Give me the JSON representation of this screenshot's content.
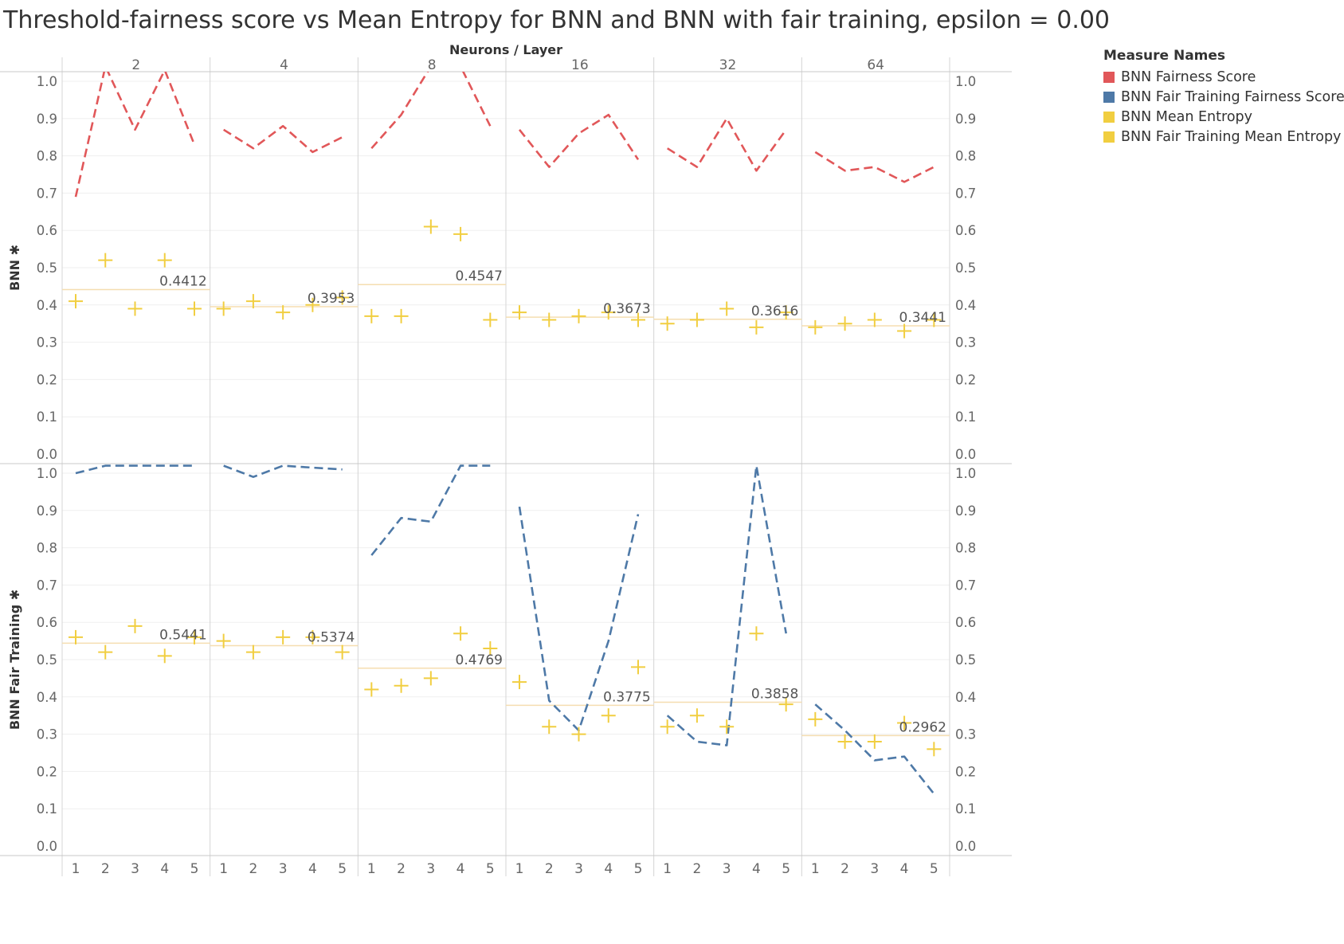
{
  "chart_data": {
    "type": "line",
    "title": "Threshold-fairness score vs Mean Entropy for BNN and BNN with fair training, epsilon = 0.00",
    "column_header": "Neurons / Layer",
    "columns": [
      "2",
      "4",
      "8",
      "16",
      "32",
      "64"
    ],
    "x_ticks": [
      "1",
      "2",
      "3",
      "4",
      "5"
    ],
    "y_ticks": [
      "0.0",
      "0.1",
      "0.2",
      "0.3",
      "0.4",
      "0.5",
      "0.6",
      "0.7",
      "0.8",
      "0.9",
      "1.0"
    ],
    "ylim": [
      0,
      1.03
    ],
    "grid": "horizontal",
    "legend_placement": "right",
    "legend": {
      "title": "Measure Names",
      "items": [
        {
          "label": "BNN Fairness Score",
          "color": "#e15759"
        },
        {
          "label": "BNN Fair Training Fairness Score",
          "color": "#4e79a7"
        },
        {
          "label": "BNN Mean Entropy",
          "color": "#f1ce40"
        },
        {
          "label": "BNN Fair Training Mean Entropy",
          "color": "#f1ce40"
        }
      ]
    },
    "rows": [
      {
        "label": "BNN",
        "fairness_series": "BNN Fairness Score",
        "entropy_series": "BNN Mean Entropy",
        "fairness_color": "#e15759",
        "panels": [
          {
            "fairness": [
              0.69,
              1.04,
              0.87,
              1.03,
              0.83
            ],
            "entropy": [
              0.41,
              0.52,
              0.39,
              0.52,
              0.39
            ],
            "reference": 0.4412
          },
          {
            "fairness": [
              0.87,
              0.82,
              0.88,
              0.81,
              0.85
            ],
            "entropy": [
              0.39,
              0.41,
              0.38,
              0.4,
              0.42
            ],
            "reference": 0.3953
          },
          {
            "fairness": [
              0.82,
              0.91,
              1.04,
              1.04,
              0.88
            ],
            "entropy": [
              0.37,
              0.37,
              0.61,
              0.59,
              0.36
            ],
            "reference": 0.4547
          },
          {
            "fairness": [
              0.87,
              0.77,
              0.86,
              0.91,
              0.79
            ],
            "entropy": [
              0.38,
              0.36,
              0.37,
              0.38,
              0.36
            ],
            "reference": 0.3673
          },
          {
            "fairness": [
              0.82,
              0.77,
              0.9,
              0.76,
              0.87
            ],
            "entropy": [
              0.35,
              0.36,
              0.39,
              0.34,
              0.38
            ],
            "reference": 0.3616
          },
          {
            "fairness": [
              0.81,
              0.76,
              0.77,
              0.73,
              0.77
            ],
            "entropy": [
              0.34,
              0.35,
              0.36,
              0.33,
              0.36
            ],
            "reference": 0.3441
          }
        ]
      },
      {
        "label": "BNN Fair Training",
        "fairness_series": "BNN Fair Training Fairness Score",
        "entropy_series": "BNN Fair Training Mean Entropy",
        "fairness_color": "#4e79a7",
        "panels": [
          {
            "fairness": [
              1.0,
              1.02,
              1.02,
              1.02,
              1.02
            ],
            "entropy": [
              0.56,
              0.52,
              0.59,
              0.51,
              0.56
            ],
            "reference": 0.5441
          },
          {
            "fairness": [
              1.02,
              0.99,
              1.02,
              1.015,
              1.01
            ],
            "entropy": [
              0.55,
              0.52,
              0.56,
              0.56,
              0.52
            ],
            "reference": 0.5374
          },
          {
            "fairness": [
              0.78,
              0.88,
              0.87,
              1.02,
              1.02
            ],
            "entropy": [
              0.42,
              0.43,
              0.45,
              0.57,
              0.53
            ],
            "reference": 0.4769
          },
          {
            "fairness": [
              0.91,
              0.39,
              0.31,
              0.55,
              0.89
            ],
            "entropy": [
              0.44,
              0.32,
              0.3,
              0.35,
              0.48
            ],
            "reference": 0.3775
          },
          {
            "fairness": [
              0.35,
              0.28,
              0.27,
              1.02,
              0.57
            ],
            "entropy": [
              0.32,
              0.35,
              0.32,
              0.57,
              0.38
            ],
            "reference": 0.3858
          },
          {
            "fairness": [
              0.38,
              0.31,
              0.23,
              0.24,
              0.14
            ],
            "entropy": [
              0.34,
              0.28,
              0.28,
              0.33,
              0.26
            ],
            "reference": 0.2962
          }
        ]
      }
    ]
  }
}
